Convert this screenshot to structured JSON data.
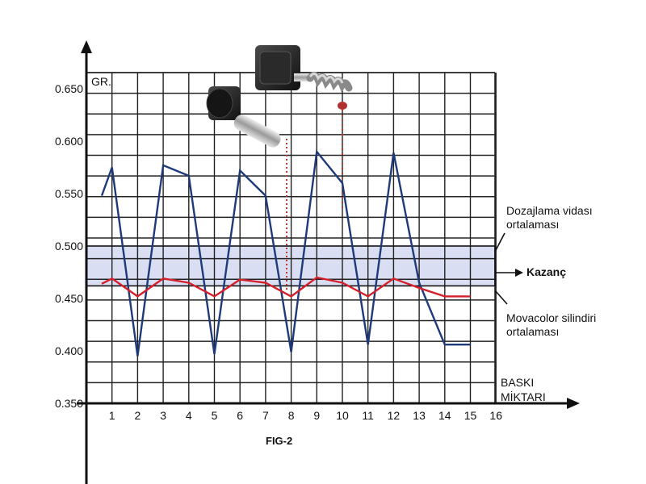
{
  "chart_data": {
    "type": "line",
    "ylabel": "GR.",
    "xlabel": "BASKI MİKTARI",
    "xlabel_lines": [
      "BASKI",
      "MİKTARI"
    ],
    "ylim": [
      0.35,
      0.7
    ],
    "xlim": [
      0,
      16
    ],
    "yticks": [
      "0.350",
      "0.400",
      "0.450",
      "0.500",
      "0.550",
      "0.600",
      "0.650"
    ],
    "xticks": [
      "1",
      "2",
      "3",
      "4",
      "5",
      "6",
      "7",
      "8",
      "9",
      "10",
      "11",
      "12",
      "13",
      "14",
      "15",
      "16"
    ],
    "grid": true,
    "series": [
      {
        "color": "#1f3a7a",
        "x": [
          0.6,
          1,
          2,
          3,
          4,
          5,
          6,
          7,
          8,
          9,
          10,
          11,
          12,
          13,
          14,
          15
        ],
        "y": [
          0.548,
          0.575,
          0.395,
          0.577,
          0.567,
          0.397,
          0.572,
          0.548,
          0.399,
          0.59,
          0.56,
          0.406,
          0.589,
          0.465,
          0.406,
          0.406
        ]
      },
      {
        "color": "#d4202a",
        "x": [
          0.6,
          1,
          2,
          3,
          4,
          5,
          6,
          7,
          8,
          9,
          10,
          11,
          12,
          13,
          14,
          15
        ],
        "y": [
          0.464,
          0.469,
          0.452,
          0.469,
          0.465,
          0.452,
          0.468,
          0.465,
          0.452,
          0.47,
          0.465,
          0.452,
          0.469,
          0.46,
          0.452,
          0.452
        ]
      }
    ],
    "band": {
      "from": 0.462,
      "to": 0.5,
      "color": "#d9def2"
    },
    "annotations": [
      {
        "lines": [
          "Dozajlama vidası",
          "ortalaması"
        ],
        "target_y": 0.5
      },
      {
        "lines": [
          "Kazanç"
        ],
        "target_y": 0.481,
        "color": "#d4202a"
      },
      {
        "lines": [
          "Movacolor silindiri",
          "ortalaması"
        ],
        "target_y": 0.462
      }
    ],
    "caption": "FIG-2"
  }
}
